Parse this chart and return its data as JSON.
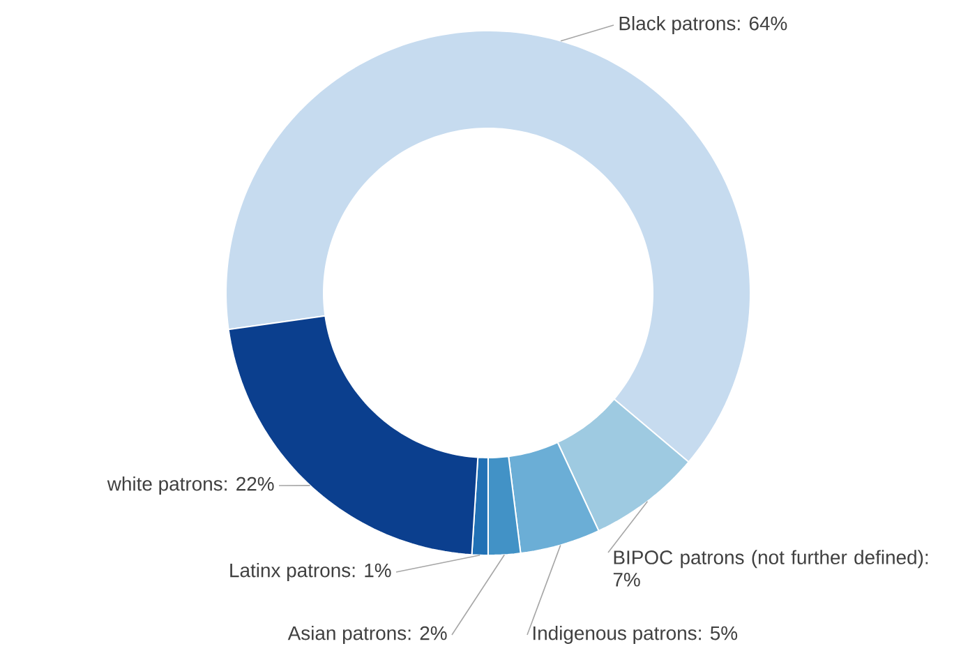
{
  "chart_data": {
    "type": "donut",
    "categories": [
      "Black patrons",
      "BIPOC patrons (not further defined)",
      "Indigenous patrons",
      "Asian patrons",
      "Latinx patrons",
      "white patrons"
    ],
    "values": [
      64,
      7,
      5,
      2,
      1,
      22
    ],
    "value_labels": [
      ": 64%",
      ": 7%",
      ": 5%",
      ": 2%",
      ": 1%",
      ": 22%"
    ],
    "colors": [
      "#c6dbef",
      "#9ecae1",
      "#6baed6",
      "#4292c6",
      "#2171b5",
      "#0b3f8e"
    ]
  }
}
